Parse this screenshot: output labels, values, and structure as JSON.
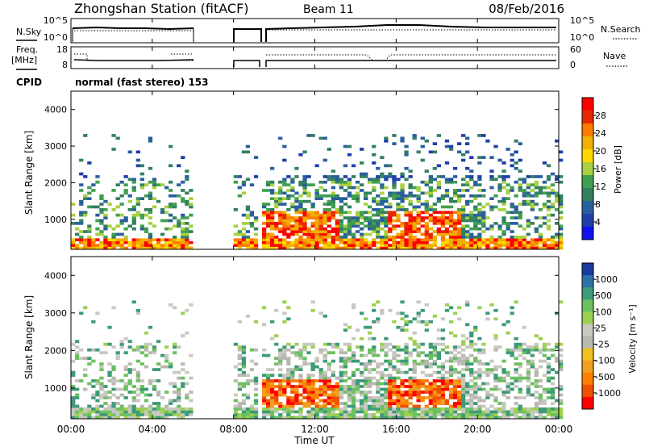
{
  "header": {
    "title": "Zhongshan Station (fitACF)",
    "beam": "Beam 11",
    "date": "08/Feb/2016"
  },
  "top_panels": {
    "nsky_label": "N.Sky",
    "nsky_ticks": [
      "10^5",
      "10^0"
    ],
    "nsearch_label": "N.Search",
    "nsearch_ticks": [
      "10^5",
      "10^0"
    ],
    "freq_label": "Freq.",
    "freq_unit": "[MHz]",
    "freq_ticks": [
      "18",
      "8"
    ],
    "nave_label": "Nave",
    "nave_ticks": [
      "60",
      "0"
    ],
    "cpid_label": "CPID",
    "cpid_text": "normal (fast stereo) 153"
  },
  "chart_data": [
    {
      "type": "heatmap",
      "name": "power",
      "ylabel": "Slant Range [km]",
      "yticks": [
        "4000",
        "3000",
        "2000",
        "1000"
      ],
      "ytick_values": [
        4000,
        3000,
        2000,
        1000
      ],
      "ylim": [
        180,
        4500
      ],
      "colorbar_label": "Power [dB]",
      "colorbar_ticks": [
        "28",
        "24",
        "20",
        "16",
        "12",
        "8",
        "4"
      ],
      "colorbar_colors": [
        "#ff0000",
        "#e82800",
        "#ff7a00",
        "#f0b000",
        "#ffd700",
        "#a8d040",
        "#40a050",
        "#338060",
        "#2a5f9e",
        "#1f3fa8",
        "#1010f0"
      ],
      "xlim": [
        "00:00",
        "24:00"
      ],
      "data_gaps_ut": [
        [
          "06:00",
          "07:50"
        ],
        [
          "09:05",
          "09:20"
        ]
      ]
    },
    {
      "type": "heatmap",
      "name": "velocity",
      "ylabel": "Slant Range [km]",
      "yticks": [
        "4000",
        "3000",
        "2000",
        "1000"
      ],
      "ytick_values": [
        4000,
        3000,
        2000,
        1000
      ],
      "ylim": [
        180,
        4500
      ],
      "colorbar_label": "Velocity [m s⁻¹]",
      "colorbar_ticks": [
        "1000",
        "500",
        "100",
        "25",
        "-25",
        "-100",
        "-500",
        "-1000"
      ],
      "colorbar_colors": [
        "#1a3aa0",
        "#2f6fa8",
        "#3e9a78",
        "#6cc060",
        "#9ed050",
        "#c8c8c0",
        "#b8b8b0",
        "#f0c020",
        "#f0a020",
        "#ff8000",
        "#f05000",
        "#ff0000"
      ],
      "xlim": [
        "00:00",
        "24:00"
      ],
      "data_gaps_ut": [
        [
          "06:00",
          "07:50"
        ],
        [
          "09:05",
          "09:20"
        ]
      ]
    }
  ],
  "x_axis": {
    "ticks": [
      "00:00",
      "04:00",
      "08:00",
      "12:00",
      "16:00",
      "20:00",
      "00:00"
    ],
    "label": "Time UT"
  },
  "colors": {
    "frame": "#000000",
    "power_red": "#ff0000",
    "power_orange": "#ff7a00",
    "power_green": "#40a050",
    "power_blue": "#1f3fa8",
    "vel_grey": "#c8c8c0",
    "vel_orange": "#f05000",
    "vel_green": "#3e9a78"
  }
}
